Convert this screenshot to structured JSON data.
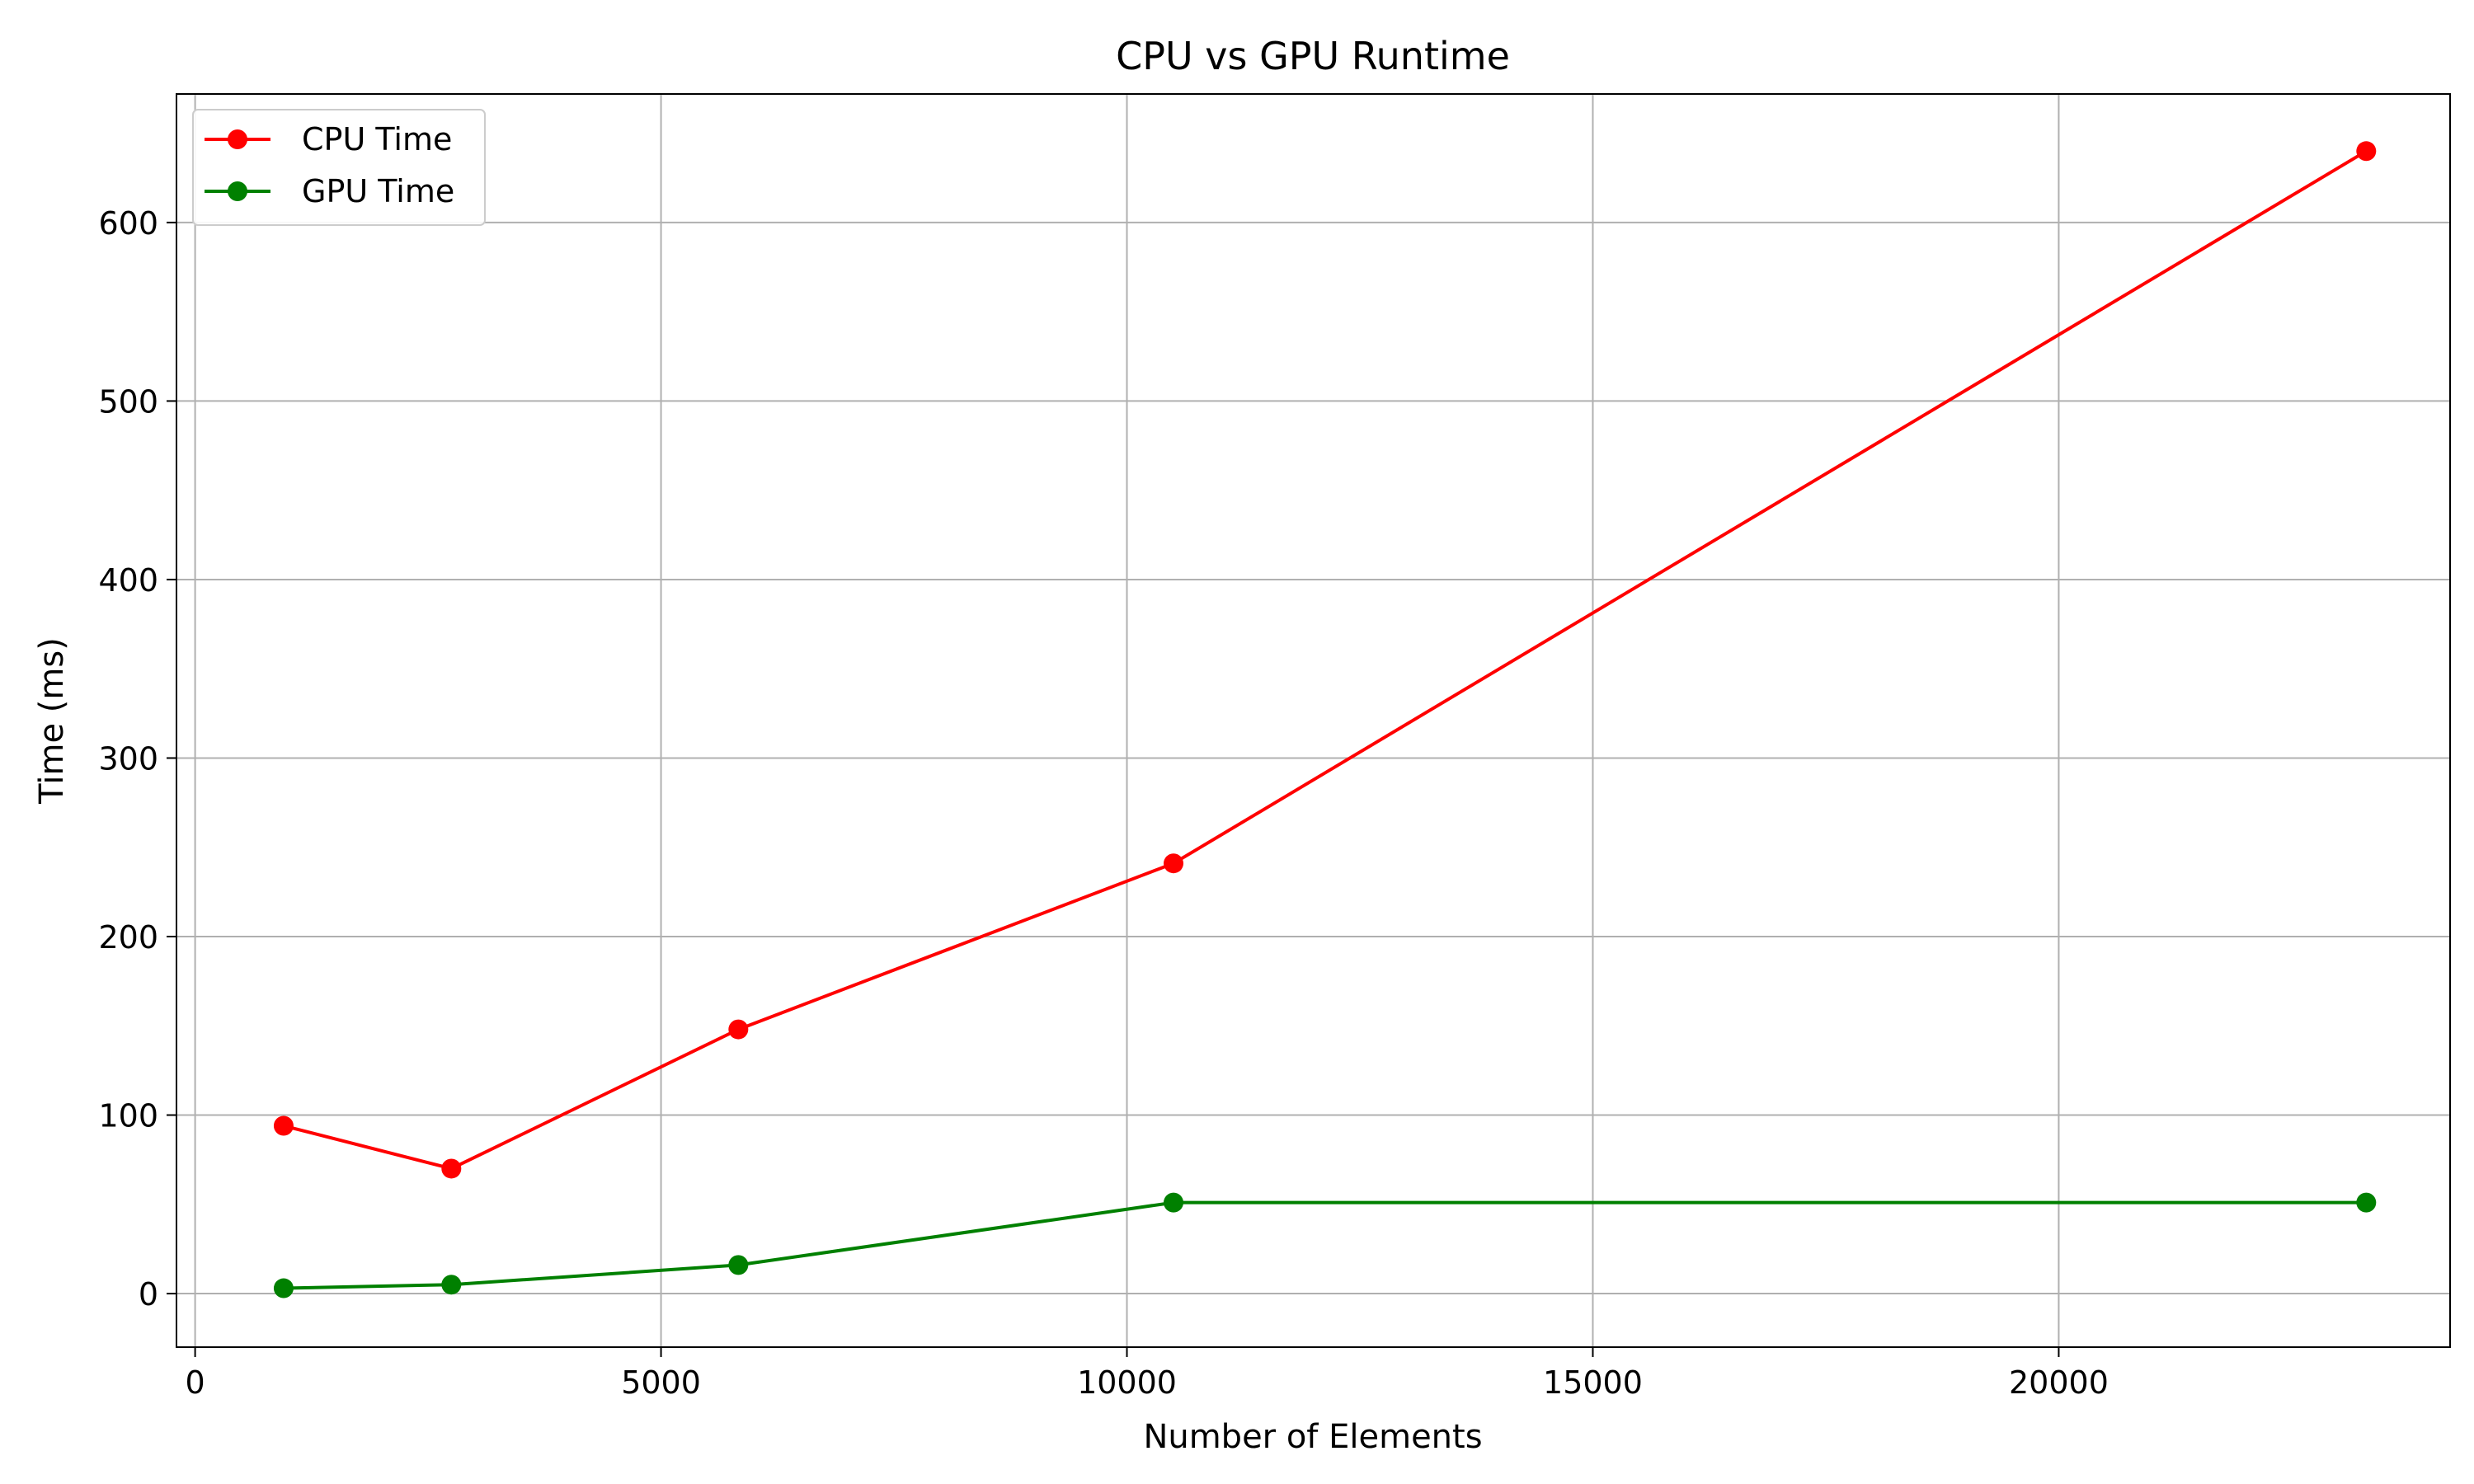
{
  "chart_data": {
    "type": "line",
    "title": "CPU vs GPU Runtime",
    "xlabel": "Number of Elements",
    "ylabel": "Time (ms)",
    "xlim": [
      -200,
      24200
    ],
    "ylim": [
      -30,
      672
    ],
    "xticks": [
      0,
      5000,
      10000,
      15000,
      20000
    ],
    "xtick_labels": [
      "0",
      "5000",
      "10000",
      "15000",
      "20000"
    ],
    "yticks": [
      0,
      100,
      200,
      300,
      400,
      500,
      600
    ],
    "ytick_labels": [
      "0",
      "100",
      "200",
      "300",
      "400",
      "500",
      "600"
    ],
    "grid": true,
    "legend_position": "top-left",
    "x": [
      950,
      2750,
      5830,
      10500,
      23300
    ],
    "series": [
      {
        "name": "CPU Time",
        "color": "#ff0000",
        "marker": "circle",
        "values": [
          94,
          70,
          148,
          241,
          640
        ]
      },
      {
        "name": "GPU Time",
        "color": "#008000",
        "marker": "circle",
        "values": [
          3,
          5,
          16,
          51,
          51
        ]
      }
    ]
  }
}
